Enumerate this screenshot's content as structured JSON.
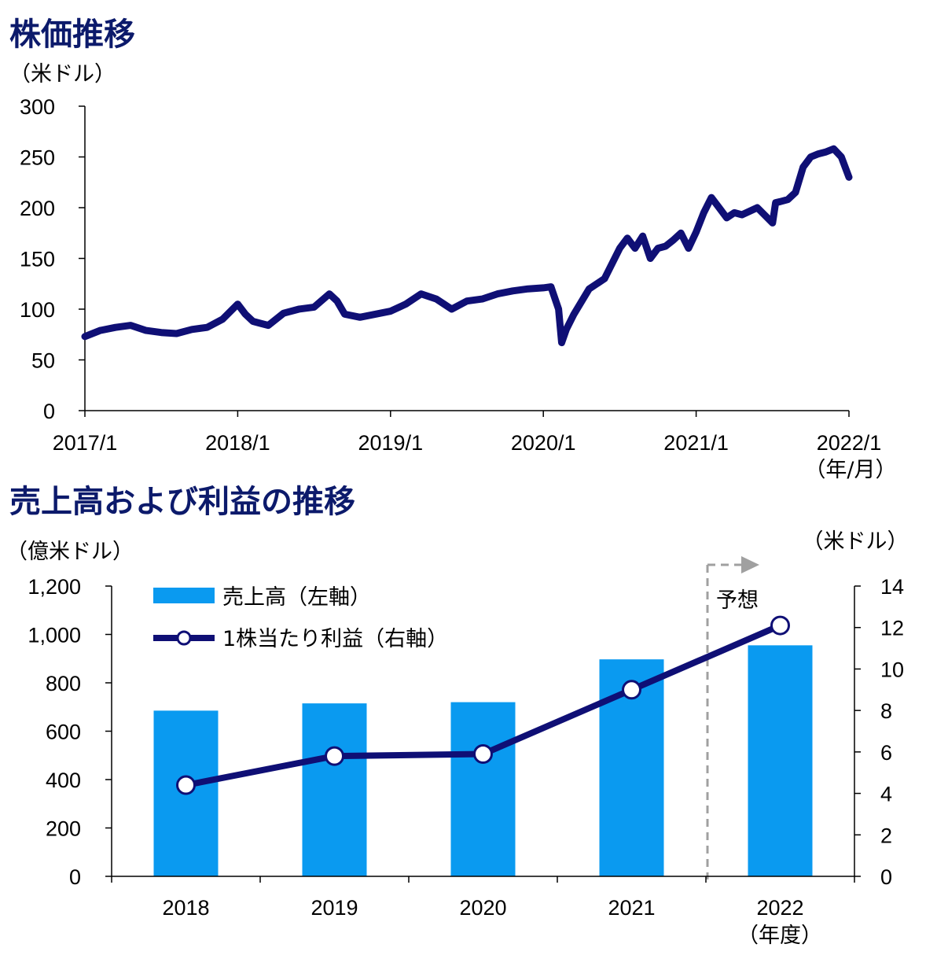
{
  "colors": {
    "navy": "#0f0f75",
    "bar": "#0a9af0",
    "heading": "#0c1a6b",
    "forecast_line": "#a0a0a0",
    "axis": "#000000"
  },
  "chart_data": [
    {
      "type": "line",
      "title": "株価推移",
      "ylabel": "（米ドル）",
      "xlabel": "（年/月）",
      "ylim": [
        0,
        300
      ],
      "yticks": [
        "0",
        "50",
        "100",
        "150",
        "200",
        "250",
        "300"
      ],
      "xticks": [
        "2017/1",
        "2018/1",
        "2019/1",
        "2020/1",
        "2021/1",
        "2022/1"
      ],
      "x": [
        2017.0,
        2017.1,
        2017.2,
        2017.3,
        2017.4,
        2017.5,
        2017.6,
        2017.7,
        2017.8,
        2017.9,
        2018.0,
        2018.05,
        2018.1,
        2018.15,
        2018.2,
        2018.3,
        2018.4,
        2018.5,
        2018.6,
        2018.65,
        2018.7,
        2018.8,
        2018.9,
        2019.0,
        2019.1,
        2019.2,
        2019.3,
        2019.4,
        2019.5,
        2019.6,
        2019.7,
        2019.8,
        2019.9,
        2020.0,
        2020.05,
        2020.1,
        2020.12,
        2020.15,
        2020.2,
        2020.3,
        2020.4,
        2020.5,
        2020.55,
        2020.6,
        2020.65,
        2020.7,
        2020.75,
        2020.8,
        2020.85,
        2020.9,
        2020.95,
        2021.0,
        2021.05,
        2021.1,
        2021.15,
        2021.2,
        2021.25,
        2021.3,
        2021.4,
        2021.5,
        2021.52,
        2021.55,
        2021.6,
        2021.65,
        2021.7,
        2021.75,
        2021.8,
        2021.85,
        2021.9,
        2021.95,
        2022.0
      ],
      "y": [
        73,
        79,
        82,
        84,
        79,
        77,
        76,
        80,
        82,
        90,
        105,
        95,
        88,
        86,
        84,
        96,
        100,
        102,
        115,
        108,
        95,
        92,
        95,
        98,
        105,
        115,
        110,
        100,
        108,
        110,
        115,
        118,
        120,
        121,
        122,
        100,
        67,
        80,
        95,
        120,
        130,
        160,
        170,
        160,
        172,
        150,
        160,
        162,
        168,
        175,
        160,
        176,
        195,
        210,
        200,
        190,
        195,
        193,
        200,
        185,
        205,
        206,
        208,
        215,
        240,
        250,
        253,
        255,
        258,
        250,
        230
      ]
    },
    {
      "type": "bar",
      "title": "売上高および利益の推移",
      "categories": [
        "2018",
        "2019",
        "2020",
        "2021",
        "2022"
      ],
      "xlabel": "（年度）",
      "forecast_label": "予想",
      "series": [
        {
          "name": "売上高（左軸）",
          "axis": "left",
          "ylabel": "（億米ドル）",
          "values": [
            685,
            715,
            720,
            897,
            955
          ],
          "ylim": [
            0,
            1200
          ],
          "yticks": [
            "0",
            "200",
            "400",
            "600",
            "800",
            "1,000",
            "1,200"
          ]
        },
        {
          "name": "1株当たり利益（右軸）",
          "axis": "right",
          "ylabel": "（米ドル）",
          "values": [
            4.4,
            5.8,
            5.9,
            9.0,
            12.1
          ],
          "ylim": [
            0,
            14
          ],
          "yticks": [
            "0",
            "2",
            "4",
            "6",
            "8",
            "10",
            "12",
            "14"
          ]
        }
      ]
    }
  ]
}
